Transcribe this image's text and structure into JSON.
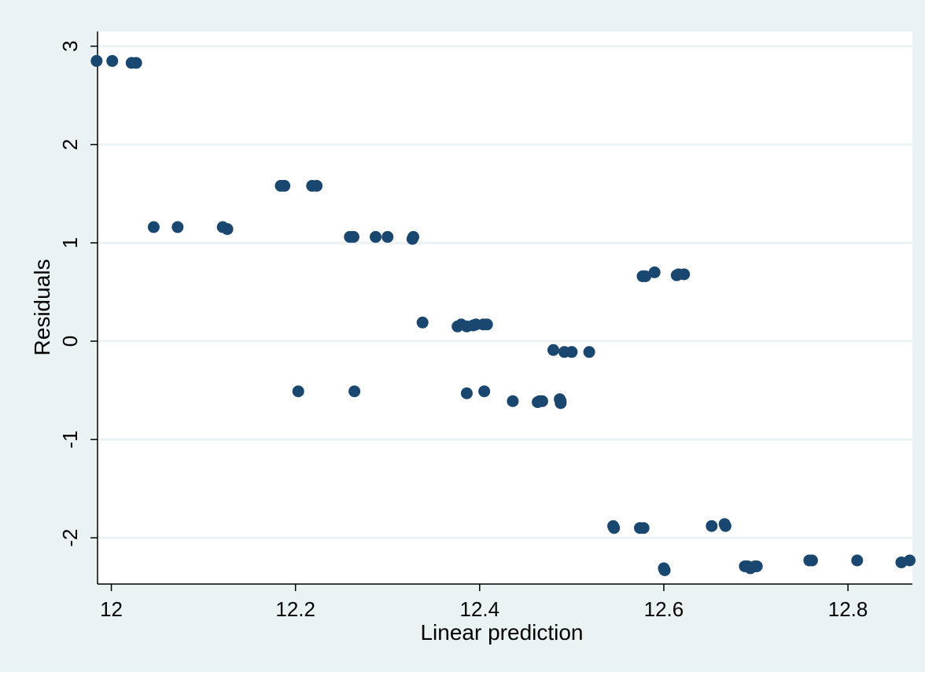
{
  "colors": {
    "outer_background": "#eaf2f3",
    "plot_background": "#ffffff",
    "gridline": "#eaf2f3",
    "marker": "#1a476f",
    "axis": "#000000"
  },
  "chart_data": {
    "type": "scatter",
    "title": "",
    "xlabel": "Linear prediction",
    "ylabel": "Residuals",
    "xlim": [
      11.985,
      12.87
    ],
    "ylim": [
      -2.47,
      3.15
    ],
    "x_ticks": [
      12,
      12.2,
      12.4,
      12.6,
      12.8
    ],
    "x_tick_labels": [
      "12",
      "12.2",
      "12.4",
      "12.6",
      "12.8"
    ],
    "y_ticks": [
      3,
      2,
      1,
      0,
      -1,
      -2
    ],
    "y_tick_labels": [
      "3",
      "2",
      "1",
      "0",
      "-1",
      "-2"
    ],
    "grid": "horizontal",
    "legend": "none",
    "points": [
      [
        11.984,
        2.85
      ],
      [
        12.001,
        2.85
      ],
      [
        12.022,
        2.83
      ],
      [
        12.027,
        2.83
      ],
      [
        12.046,
        1.16
      ],
      [
        12.072,
        1.16
      ],
      [
        12.121,
        1.16
      ],
      [
        12.126,
        1.14
      ],
      [
        12.184,
        1.58
      ],
      [
        12.188,
        1.58
      ],
      [
        12.218,
        1.58
      ],
      [
        12.223,
        1.58
      ],
      [
        12.259,
        1.06
      ],
      [
        12.263,
        1.06
      ],
      [
        12.287,
        1.06
      ],
      [
        12.3,
        1.06
      ],
      [
        12.327,
        1.04
      ],
      [
        12.328,
        1.06
      ],
      [
        12.338,
        0.19
      ],
      [
        12.376,
        0.15
      ],
      [
        12.38,
        0.17
      ],
      [
        12.386,
        0.15
      ],
      [
        12.393,
        0.16
      ],
      [
        12.396,
        0.17
      ],
      [
        12.404,
        0.17
      ],
      [
        12.408,
        0.17
      ],
      [
        12.203,
        -0.51
      ],
      [
        12.264,
        -0.51
      ],
      [
        12.386,
        -0.53
      ],
      [
        12.405,
        -0.51
      ],
      [
        12.436,
        -0.61
      ],
      [
        12.463,
        -0.62
      ],
      [
        12.465,
        -0.61
      ],
      [
        12.468,
        -0.61
      ],
      [
        12.487,
        -0.59
      ],
      [
        12.488,
        -0.61
      ],
      [
        12.488,
        -0.63
      ],
      [
        12.48,
        -0.09
      ],
      [
        12.492,
        -0.11
      ],
      [
        12.5,
        -0.11
      ],
      [
        12.519,
        -0.11
      ],
      [
        12.577,
        0.66
      ],
      [
        12.58,
        0.66
      ],
      [
        12.59,
        0.7
      ],
      [
        12.614,
        0.67
      ],
      [
        12.616,
        0.68
      ],
      [
        12.622,
        0.68
      ],
      [
        12.545,
        -1.88
      ],
      [
        12.546,
        -1.9
      ],
      [
        12.574,
        -1.9
      ],
      [
        12.578,
        -1.9
      ],
      [
        12.652,
        -1.88
      ],
      [
        12.666,
        -1.86
      ],
      [
        12.667,
        -1.88
      ],
      [
        12.6,
        -2.31
      ],
      [
        12.601,
        -2.33
      ],
      [
        12.688,
        -2.29
      ],
      [
        12.691,
        -2.29
      ],
      [
        12.694,
        -2.31
      ],
      [
        12.699,
        -2.29
      ],
      [
        12.701,
        -2.29
      ],
      [
        12.758,
        -2.23
      ],
      [
        12.761,
        -2.23
      ],
      [
        12.81,
        -2.23
      ],
      [
        12.858,
        -2.25
      ],
      [
        12.867,
        -2.23
      ]
    ]
  }
}
